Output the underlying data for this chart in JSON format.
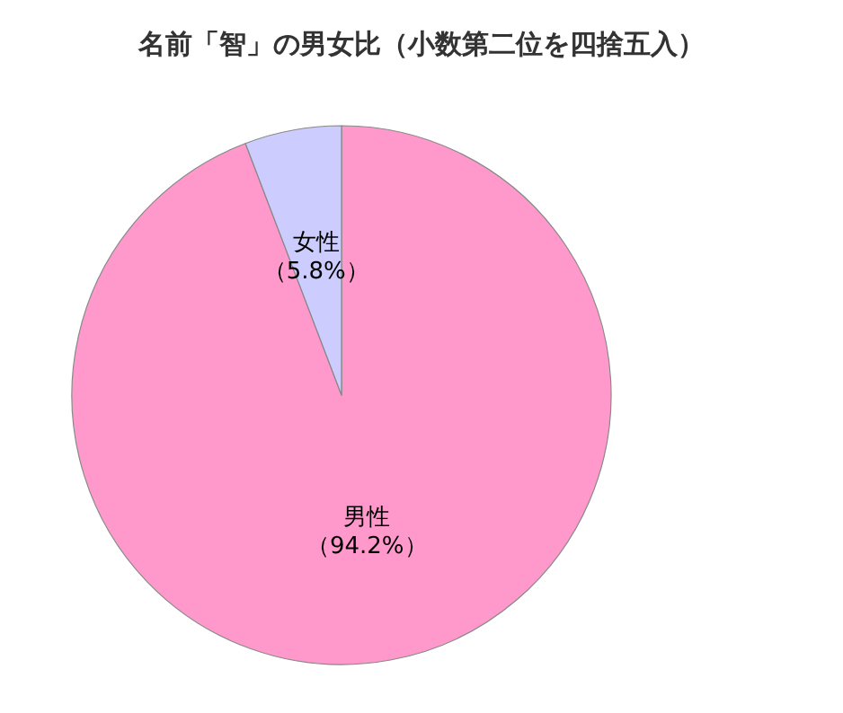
{
  "chart_data": {
    "type": "pie",
    "title": "名前「智」の男女比（小数第二位を四捨五入）",
    "categories": [
      "男性",
      "女性"
    ],
    "values": [
      94.2,
      5.8
    ],
    "value_labels": [
      "（94.2%）",
      "（5.8%）"
    ],
    "colors": [
      "#ff99cc",
      "#ccccff"
    ],
    "legend": false
  }
}
